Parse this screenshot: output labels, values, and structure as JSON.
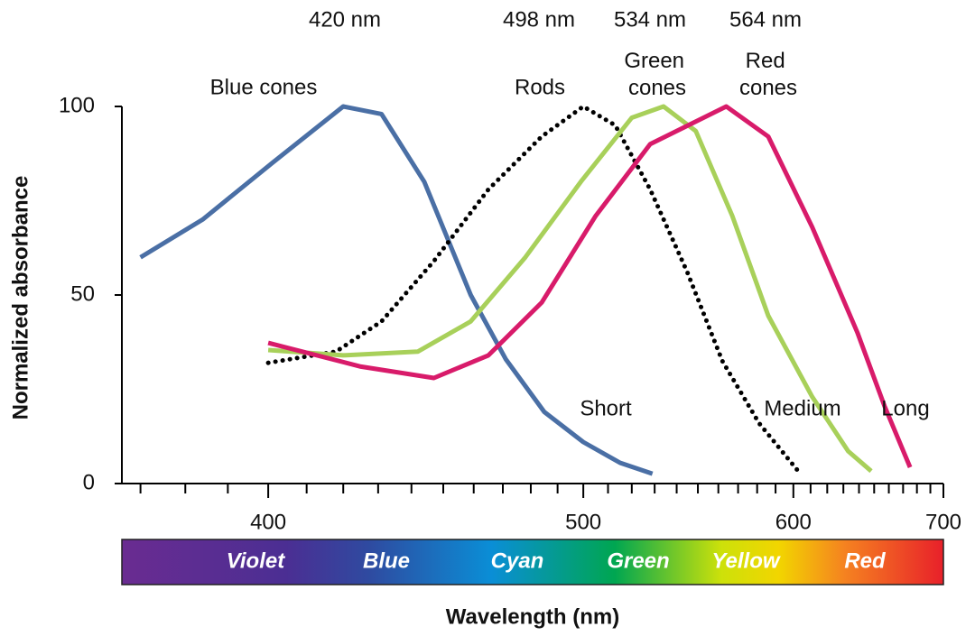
{
  "chart_data": {
    "type": "line",
    "x_label": "Wavelength (nm)",
    "y_label": "Normalized absorbance",
    "xscale": "reciprocal",
    "xlim": [
      366,
      700
    ],
    "xticks": [
      400,
      500,
      600,
      700
    ],
    "xminor_ticks": [
      370,
      380,
      390,
      410,
      420,
      430,
      440,
      450,
      460,
      470,
      480,
      490,
      510,
      520,
      530,
      540,
      550,
      560,
      570,
      580,
      590,
      610,
      620,
      630,
      640,
      650,
      660,
      670,
      680,
      690
    ],
    "ylim": [
      0,
      100
    ],
    "yticks": [
      0,
      50,
      100
    ],
    "series": [
      {
        "name": "Blue cones",
        "peak_label": "420 nm",
        "end_label": "Short",
        "color": "#4a6fa5",
        "dash": "solid",
        "x": [
          370,
          384,
          401,
          420,
          431,
          444,
          459,
          471,
          485,
          500,
          515,
          529
        ],
        "values": [
          60,
          70,
          85,
          100,
          98,
          80,
          50,
          33,
          19,
          11,
          5.5,
          2.6
        ]
      },
      {
        "name": "Rods",
        "peak_label": "498 nm",
        "color": "#000000",
        "dash": "dotted",
        "x": [
          400,
          418,
          431,
          447,
          465,
          484,
          500,
          513,
          528,
          545,
          562,
          581,
          604
        ],
        "values": [
          32,
          35,
          43,
          59,
          78,
          92,
          100,
          95,
          78,
          56,
          32.5,
          16,
          2.6
        ]
      },
      {
        "name": "Green cones",
        "peak_label": "534 nm",
        "end_label": "Medium",
        "color": "#a8d05a",
        "dash": "solid",
        "x": [
          400,
          420,
          442,
          459,
          478,
          499,
          520,
          534,
          549,
          567,
          586,
          611,
          633,
          648
        ],
        "values": [
          35.4,
          34,
          35,
          43,
          60,
          80,
          97,
          100,
          93.5,
          71,
          44.5,
          23,
          8.6,
          3.3
        ]
      },
      {
        "name": "Red cones",
        "peak_label": "564 nm",
        "end_label": "Long",
        "color": "#d81b6a",
        "dash": "solid",
        "x": [
          400,
          425,
          447,
          465,
          484,
          505,
          528,
          564,
          586,
          611,
          639,
          657,
          675
        ],
        "values": [
          37.3,
          31,
          28,
          34,
          48,
          71,
          90,
          100,
          92,
          68,
          40,
          20.6,
          4.3
        ]
      }
    ],
    "spectrum_labels": [
      "Violet",
      "Blue",
      "Cyan",
      "Green",
      "Yellow",
      "Red"
    ]
  }
}
